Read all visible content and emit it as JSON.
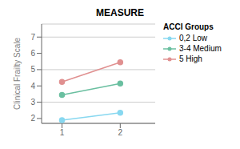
{
  "chart_data": {
    "type": "line",
    "title": "MEASURE",
    "ylabel": "Clinical Frailty Scale",
    "x": [
      1,
      2
    ],
    "xlim": [
      0.65,
      2.6
    ],
    "xticks": [
      1,
      2
    ],
    "ylim": [
      1.7,
      7.8
    ],
    "yticks": [
      2,
      3,
      4,
      5,
      6,
      7
    ],
    "grid": true,
    "legend": "upper right",
    "legend_title": "ACCI Groups",
    "marker": "circle",
    "series": [
      {
        "name": "0,2 Low",
        "color": "#88d8f0",
        "values": [
          1.9,
          2.35
        ]
      },
      {
        "name": "3-4 Medium",
        "color": "#6abfa0",
        "values": [
          3.45,
          4.15
        ]
      },
      {
        "name": "5 High",
        "color": "#e09090",
        "values": [
          4.25,
          5.45
        ]
      }
    ]
  }
}
